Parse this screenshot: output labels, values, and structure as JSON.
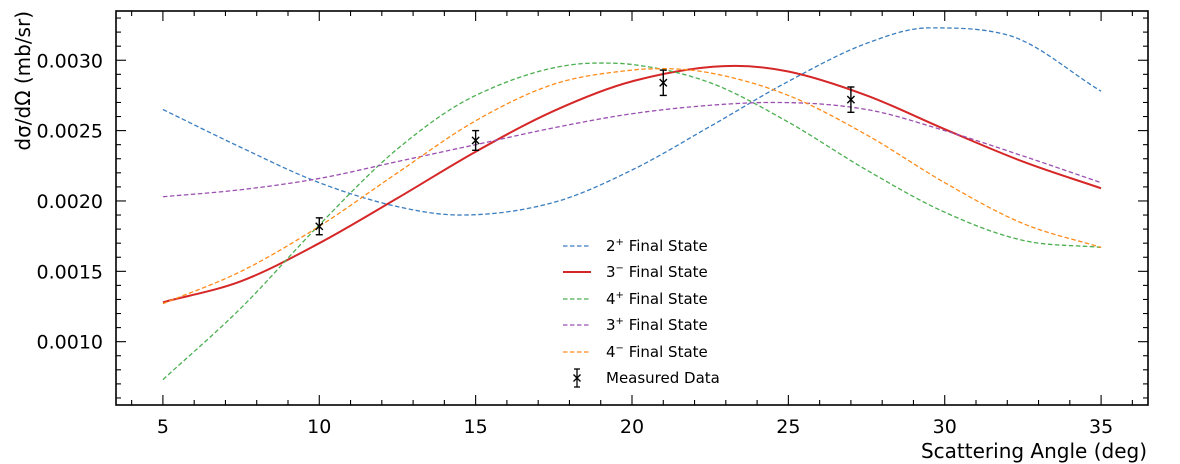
{
  "chart_data": {
    "type": "line",
    "xlabel": "Scattering Angle (deg)",
    "ylabel": "dσ/dΩ (mb/sr)",
    "xlim": [
      3.5,
      36.5
    ],
    "ylim": [
      0.00055,
      0.00335
    ],
    "x_ticks": [
      5,
      10,
      15,
      20,
      25,
      30,
      35
    ],
    "x_tick_labels": [
      "5",
      "10",
      "15",
      "20",
      "25",
      "30",
      "35"
    ],
    "y_ticks": [
      0.001,
      0.0015,
      0.002,
      0.0025,
      0.003
    ],
    "y_tick_labels": [
      "0.0010",
      "0.0015",
      "0.0020",
      "0.0025",
      "0.0030"
    ],
    "grid": false,
    "legend_position": "lower-center",
    "series": [
      {
        "name": "2⁺ Final State",
        "label_base": "2",
        "label_sup": "+",
        "label_rest": " Final State",
        "style": "dashed",
        "color": "#3a7ebf",
        "x": [
          5,
          7.5,
          10,
          12.5,
          14.5,
          17.5,
          20,
          22.5,
          25,
          27.5,
          29.5,
          32,
          35
        ],
        "y": [
          0.00265,
          0.00238,
          0.00213,
          0.00196,
          0.0019,
          0.00199,
          0.00222,
          0.00253,
          0.00285,
          0.00312,
          0.00323,
          0.00318,
          0.00278
        ]
      },
      {
        "name": "3⁻ Final State",
        "label_base": "3",
        "label_sup": "−",
        "label_rest": " Final State",
        "style": "solid",
        "color": "#d62728",
        "x": [
          5,
          7.5,
          10,
          12.5,
          15,
          17.5,
          20,
          23.3,
          25,
          27.5,
          30,
          32.5,
          35
        ],
        "y": [
          0.00128,
          0.00143,
          0.0017,
          0.00202,
          0.00235,
          0.00264,
          0.00285,
          0.00296,
          0.00292,
          0.00275,
          0.00251,
          0.00228,
          0.00209
        ]
      },
      {
        "name": "4⁺ Final State",
        "label_base": "4",
        "label_sup": "+",
        "label_rest": " Final State",
        "style": "dashed",
        "color": "#4caf50",
        "x": [
          5,
          7.5,
          10,
          12.5,
          15,
          18.9,
          20,
          22.5,
          25,
          27.5,
          30,
          32.5,
          35
        ],
        "y": [
          0.00073,
          0.00124,
          0.00183,
          0.00237,
          0.00275,
          0.00298,
          0.00297,
          0.00284,
          0.00256,
          0.00222,
          0.00192,
          0.00172,
          0.00167
        ]
      },
      {
        "name": "3⁺ Final State",
        "label_base": "3",
        "label_sup": "+",
        "label_rest": " Final State",
        "style": "dashed",
        "color": "#9b4fb0",
        "x": [
          5,
          7.5,
          10,
          12.5,
          15,
          17.5,
          20,
          22.5,
          24.5,
          27.5,
          30,
          32.5,
          35
        ],
        "y": [
          0.00203,
          0.00208,
          0.00216,
          0.00228,
          0.0024,
          0.00252,
          0.00262,
          0.00268,
          0.0027,
          0.00265,
          0.0025,
          0.00232,
          0.00213
        ]
      },
      {
        "name": "4⁻ Final State",
        "label_base": "4",
        "label_sup": "−",
        "label_rest": " Final State",
        "style": "dashed",
        "color": "#ff8c1a",
        "x": [
          5,
          7.5,
          10,
          12.5,
          15,
          17.5,
          20,
          21,
          22.5,
          25,
          27.5,
          30,
          32.5,
          35
        ],
        "y": [
          0.00127,
          0.0015,
          0.00182,
          0.0022,
          0.00257,
          0.00283,
          0.00293,
          0.00294,
          0.00291,
          0.00275,
          0.00247,
          0.00213,
          0.00184,
          0.00167
        ]
      }
    ],
    "measured": {
      "name": "Measured Data",
      "color": "#000000",
      "x": [
        10,
        15,
        21,
        27
      ],
      "y": [
        0.00182,
        0.00243,
        0.00284,
        0.00272
      ],
      "yerr": [
        6e-05,
        7e-05,
        9e-05,
        9e-05
      ]
    }
  }
}
